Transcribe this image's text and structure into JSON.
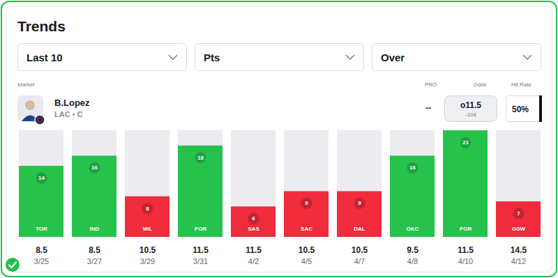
{
  "header": {
    "title": "Trends",
    "filters": [
      "Last 10",
      "Pts",
      "Over"
    ]
  },
  "market": {
    "label": "Market",
    "player": "B.Lopez",
    "team": "LAC • C",
    "pro_label": "PRO",
    "pro": "--",
    "odds_label": "Odds",
    "odds": "o11.5",
    "odds_price": "-108",
    "hit_rate_label": "Hit Rate",
    "hit_rate": "50%"
  },
  "chart_data": {
    "type": "bar",
    "categories": [
      "TOR",
      "IND",
      "MIL",
      "POR",
      "SAS",
      "SAC",
      "DAL",
      "OKC",
      "POR",
      "GSW"
    ],
    "values": [
      14,
      16,
      8,
      18,
      6,
      9,
      9,
      16,
      21,
      7
    ],
    "colors": [
      "#27c24c",
      "#27c24c",
      "#ef2b3c",
      "#27c24c",
      "#ef2b3c",
      "#ef2b3c",
      "#ef2b3c",
      "#27c24c",
      "#27c24c",
      "#ef2b3c"
    ],
    "lines": [
      8.5,
      8.5,
      10.5,
      11.5,
      11.5,
      10.5,
      10.5,
      9.5,
      11.5,
      14.5
    ],
    "dates": [
      "3/25",
      "3/27",
      "3/29",
      "3/31",
      "4/2",
      "4/5",
      "4/7",
      "4/8",
      "4/10",
      "4/12"
    ],
    "ylim": [
      0,
      21
    ],
    "yticks": [],
    "tick_labels": false,
    "data_labels": true
  }
}
